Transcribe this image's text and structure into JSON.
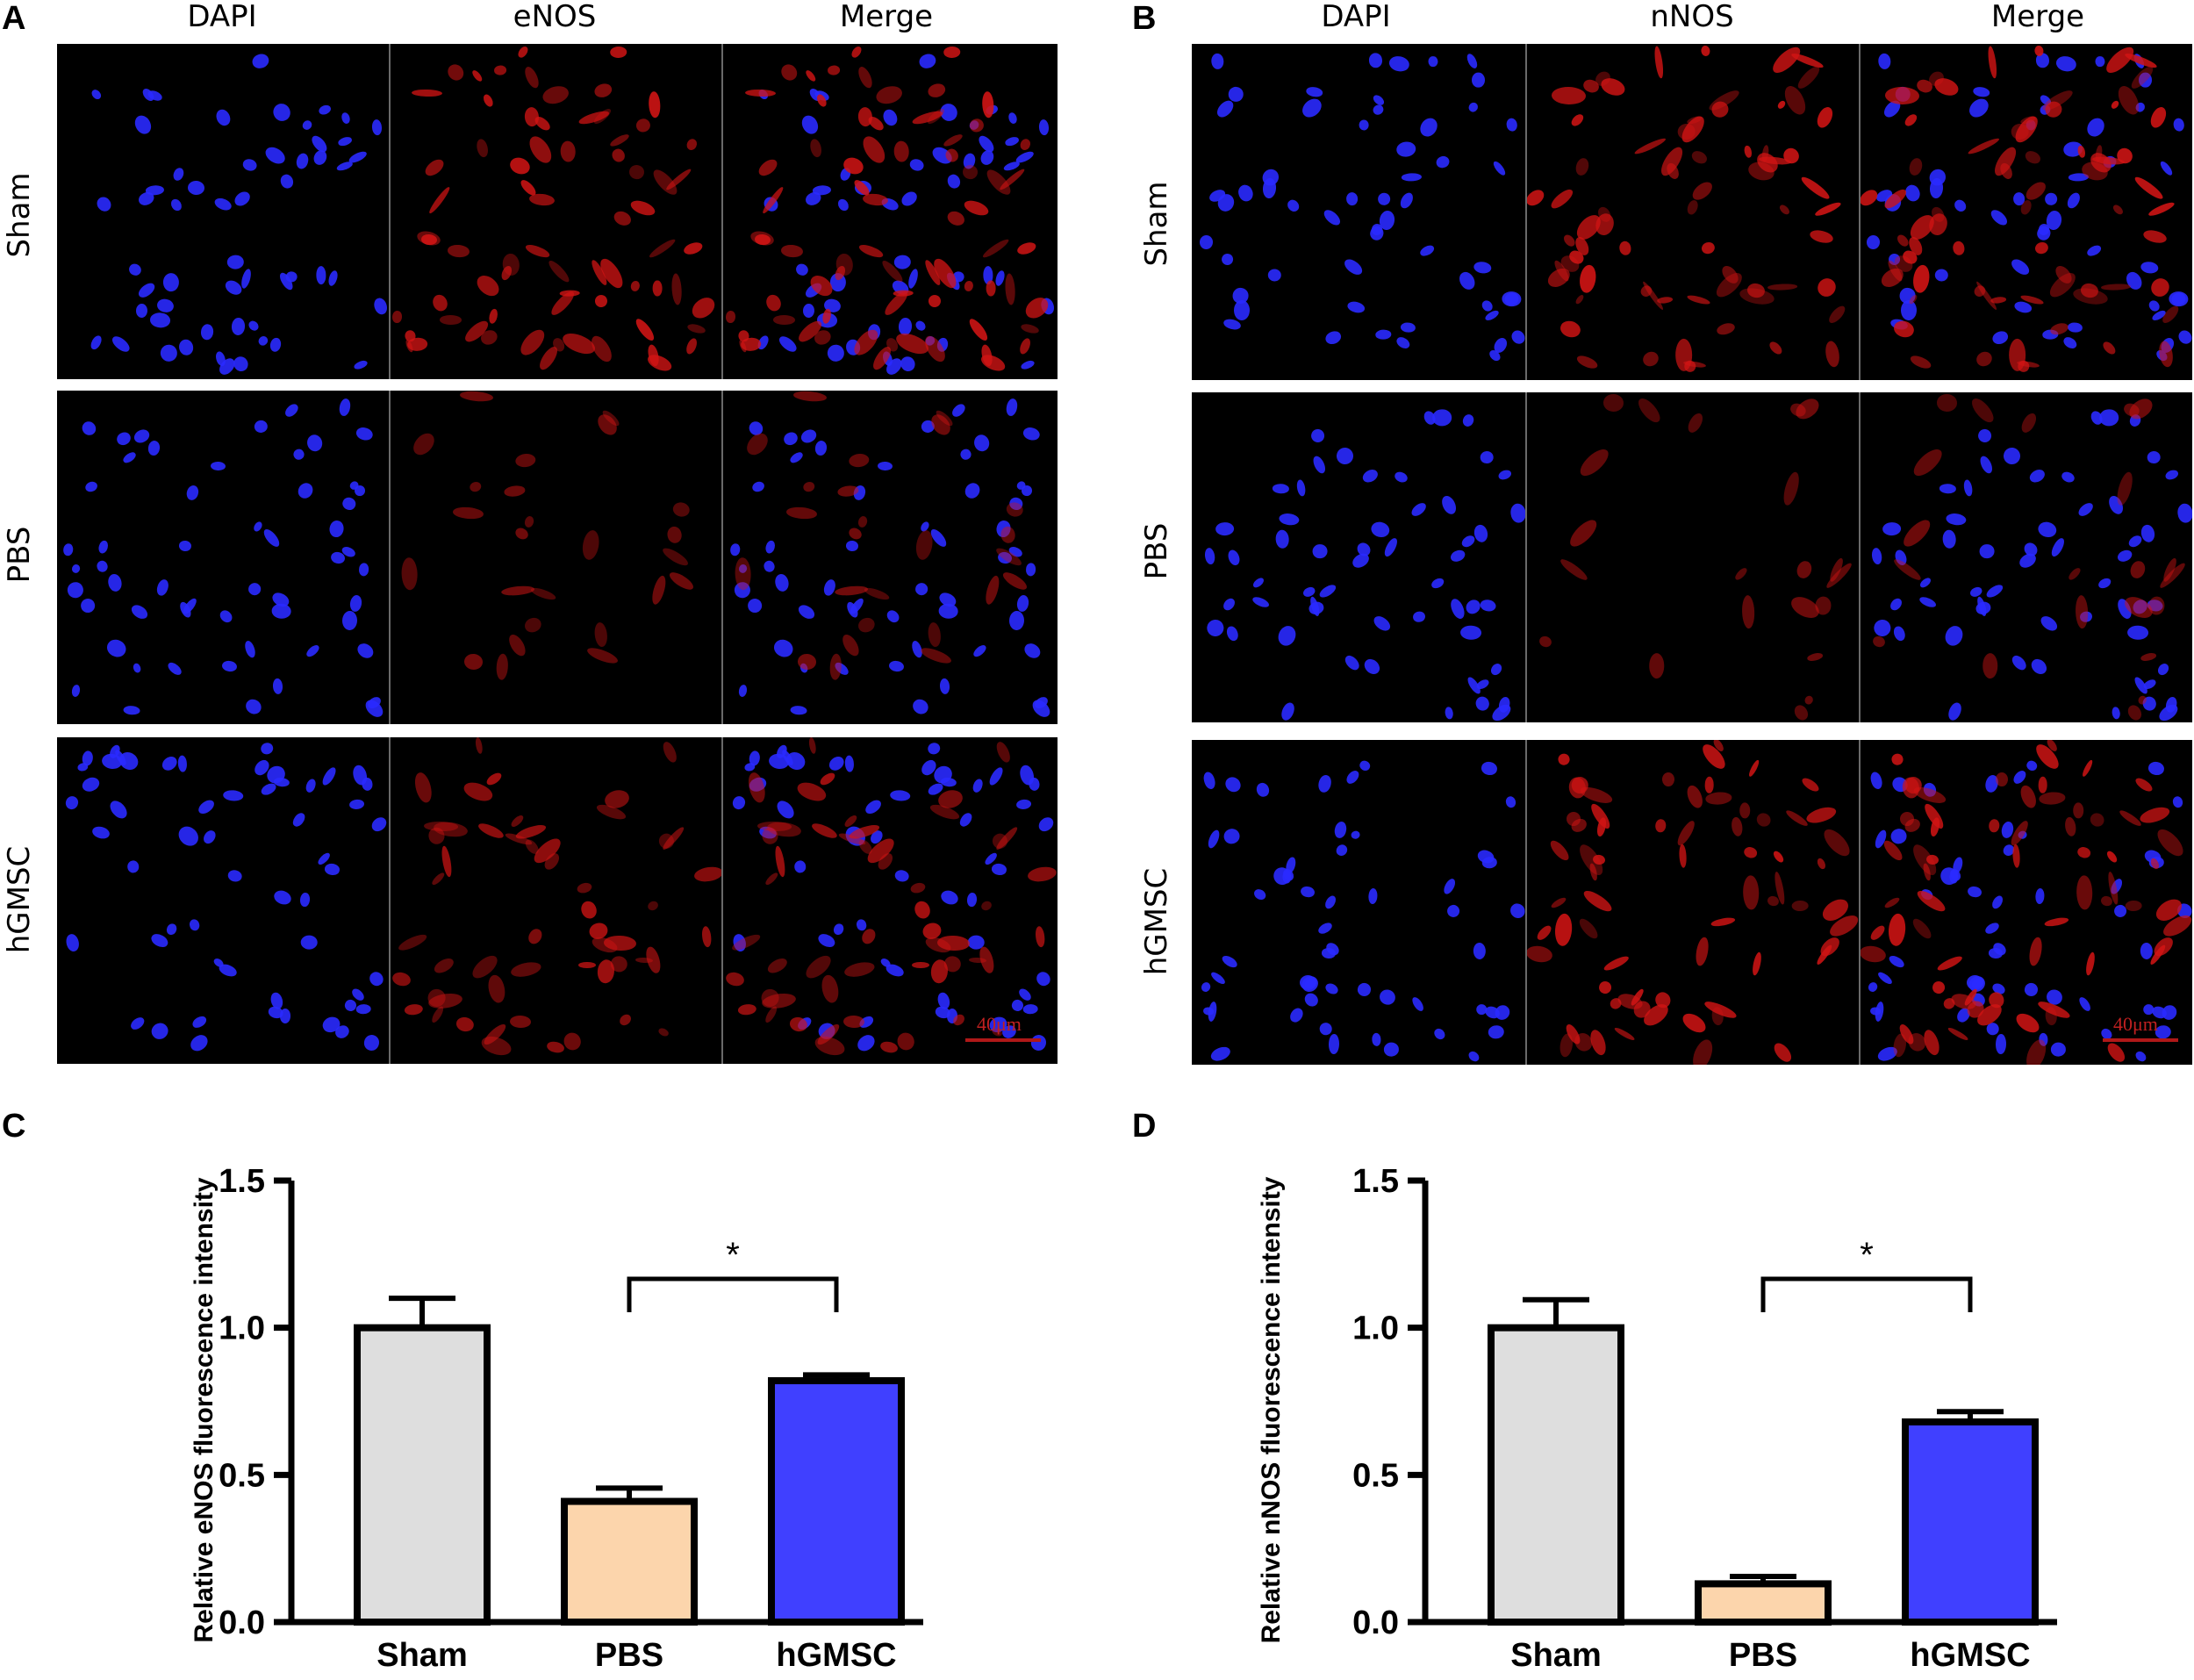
{
  "figure": {
    "panels": {
      "A": {
        "letter": "A",
        "columns": [
          "DAPI",
          "eNOS",
          "Merge"
        ],
        "rows": [
          "Sham",
          "PBS",
          "hGMSC"
        ],
        "scale_bar": "40μm"
      },
      "B": {
        "letter": "B",
        "columns": [
          "DAPI",
          "nNOS",
          "Merge"
        ],
        "rows": [
          "Sham",
          "PBS",
          "hGMSC"
        ],
        "scale_bar": "40μm"
      },
      "C": {
        "letter": "C"
      },
      "D": {
        "letter": "D"
      }
    }
  },
  "chart_data": [
    {
      "type": "bar",
      "panel": "C",
      "categories": [
        "Sham",
        "PBS",
        "hGMSC"
      ],
      "values": [
        1.0,
        0.41,
        0.82
      ],
      "errors": [
        0.1,
        0.045,
        0.02
      ],
      "colors": [
        "#dedede",
        "#fcd5ac",
        "#4040ff"
      ],
      "title": "",
      "xlabel": "",
      "ylabel": "Relative eNOS fluorescence intensity",
      "ylim": [
        0,
        1.5
      ],
      "yticks": [
        0.0,
        0.5,
        1.0,
        1.5
      ],
      "ytick_labels": [
        "0.0",
        "0.5",
        "1.0",
        "1.5"
      ],
      "significance": {
        "from": "PBS",
        "to": "hGMSC",
        "label": "*"
      },
      "grid": false
    },
    {
      "type": "bar",
      "panel": "D",
      "categories": [
        "Sham",
        "PBS",
        "hGMSC"
      ],
      "values": [
        1.0,
        0.13,
        0.68
      ],
      "errors": [
        0.095,
        0.025,
        0.035
      ],
      "colors": [
        "#dedede",
        "#fcd5ac",
        "#4040ff"
      ],
      "title": "",
      "xlabel": "",
      "ylabel": "Relative nNOS fluorescence intensity",
      "ylim": [
        0,
        1.5
      ],
      "yticks": [
        0.0,
        0.5,
        1.0,
        1.5
      ],
      "ytick_labels": [
        "0.0",
        "0.5",
        "1.0",
        "1.5"
      ],
      "significance": {
        "from": "PBS",
        "to": "hGMSC",
        "label": "*"
      },
      "grid": false
    }
  ]
}
